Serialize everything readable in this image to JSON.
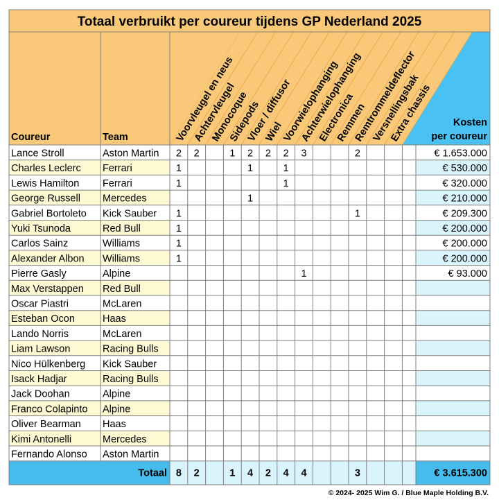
{
  "title": "Totaal verbruikt per coureur tijdens GP Nederland 2025",
  "headers": {
    "driver": "Coureur",
    "team": "Team",
    "cost_line1": "Kosten",
    "cost_line2": "per coureur"
  },
  "parts": [
    "Voorvleugel en neus",
    "Achtervleugel",
    "Monocoque",
    "Sidepods",
    "Vloer / diffusor",
    "Wiel",
    "Voorwielophanging",
    "Achterwielophanging",
    "Electronica",
    "Remmen",
    "Remtrommeldeflector",
    "Versnellingsbak",
    "Extra chassis"
  ],
  "rows": [
    {
      "driver": "Lance Stroll",
      "team": "Aston Martin",
      "counts": [
        "2",
        "2",
        "",
        "1",
        "2",
        "2",
        "2",
        "3",
        "",
        "",
        "2",
        "",
        ""
      ],
      "cost": "€ 1.653.000"
    },
    {
      "driver": "Charles Leclerc",
      "team": "Ferrari",
      "counts": [
        "1",
        "",
        "",
        "",
        "1",
        "",
        "1",
        "",
        "",
        "",
        "",
        "",
        ""
      ],
      "cost": "€ 530.000"
    },
    {
      "driver": "Lewis Hamilton",
      "team": "Ferrari",
      "counts": [
        "1",
        "",
        "",
        "",
        "",
        "",
        "1",
        "",
        "",
        "",
        "",
        "",
        ""
      ],
      "cost": "€ 320.000"
    },
    {
      "driver": "George Russell",
      "team": "Mercedes",
      "counts": [
        "",
        "",
        "",
        "",
        "1",
        "",
        "",
        "",
        "",
        "",
        "",
        "",
        ""
      ],
      "cost": "€ 210.000"
    },
    {
      "driver": "Gabriel Bortoleto",
      "team": "Kick Sauber",
      "counts": [
        "1",
        "",
        "",
        "",
        "",
        "",
        "",
        "",
        "",
        "",
        "1",
        "",
        ""
      ],
      "cost": "€ 209.300"
    },
    {
      "driver": "Yuki Tsunoda",
      "team": "Red Bull",
      "counts": [
        "1",
        "",
        "",
        "",
        "",
        "",
        "",
        "",
        "",
        "",
        "",
        "",
        ""
      ],
      "cost": "€ 200.000"
    },
    {
      "driver": "Carlos Sainz",
      "team": "Williams",
      "counts": [
        "1",
        "",
        "",
        "",
        "",
        "",
        "",
        "",
        "",
        "",
        "",
        "",
        ""
      ],
      "cost": "€ 200.000"
    },
    {
      "driver": "Alexander Albon",
      "team": "Williams",
      "counts": [
        "1",
        "",
        "",
        "",
        "",
        "",
        "",
        "",
        "",
        "",
        "",
        "",
        ""
      ],
      "cost": "€ 200.000"
    },
    {
      "driver": "Pierre Gasly",
      "team": "Alpine",
      "counts": [
        "",
        "",
        "",
        "",
        "",
        "",
        "",
        "1",
        "",
        "",
        "",
        "",
        ""
      ],
      "cost": "€ 93.000"
    },
    {
      "driver": "Max Verstappen",
      "team": "Red Bull",
      "counts": [
        "",
        "",
        "",
        "",
        "",
        "",
        "",
        "",
        "",
        "",
        "",
        "",
        ""
      ],
      "cost": ""
    },
    {
      "driver": "Oscar Piastri",
      "team": "McLaren",
      "counts": [
        "",
        "",
        "",
        "",
        "",
        "",
        "",
        "",
        "",
        "",
        "",
        "",
        ""
      ],
      "cost": ""
    },
    {
      "driver": "Esteban Ocon",
      "team": "Haas",
      "counts": [
        "",
        "",
        "",
        "",
        "",
        "",
        "",
        "",
        "",
        "",
        "",
        "",
        ""
      ],
      "cost": ""
    },
    {
      "driver": "Lando Norris",
      "team": "McLaren",
      "counts": [
        "",
        "",
        "",
        "",
        "",
        "",
        "",
        "",
        "",
        "",
        "",
        "",
        ""
      ],
      "cost": ""
    },
    {
      "driver": "Liam Lawson",
      "team": "Racing Bulls",
      "counts": [
        "",
        "",
        "",
        "",
        "",
        "",
        "",
        "",
        "",
        "",
        "",
        "",
        ""
      ],
      "cost": ""
    },
    {
      "driver": "Nico Hülkenberg",
      "team": "Kick Sauber",
      "counts": [
        "",
        "",
        "",
        "",
        "",
        "",
        "",
        "",
        "",
        "",
        "",
        "",
        ""
      ],
      "cost": ""
    },
    {
      "driver": "Isack Hadjar",
      "team": "Racing Bulls",
      "counts": [
        "",
        "",
        "",
        "",
        "",
        "",
        "",
        "",
        "",
        "",
        "",
        "",
        ""
      ],
      "cost": ""
    },
    {
      "driver": "Jack Doohan",
      "team": "Alpine",
      "counts": [
        "",
        "",
        "",
        "",
        "",
        "",
        "",
        "",
        "",
        "",
        "",
        "",
        ""
      ],
      "cost": ""
    },
    {
      "driver": "Franco Colapinto",
      "team": "Alpine",
      "counts": [
        "",
        "",
        "",
        "",
        "",
        "",
        "",
        "",
        "",
        "",
        "",
        "",
        ""
      ],
      "cost": ""
    },
    {
      "driver": "Oliver Bearman",
      "team": "Haas",
      "counts": [
        "",
        "",
        "",
        "",
        "",
        "",
        "",
        "",
        "",
        "",
        "",
        "",
        ""
      ],
      "cost": ""
    },
    {
      "driver": "Kimi Antonelli",
      "team": "Mercedes",
      "counts": [
        "",
        "",
        "",
        "",
        "",
        "",
        "",
        "",
        "",
        "",
        "",
        "",
        ""
      ],
      "cost": ""
    },
    {
      "driver": "Fernando Alonso",
      "team": "Aston Martin",
      "counts": [
        "",
        "",
        "",
        "",
        "",
        "",
        "",
        "",
        "",
        "",
        "",
        "",
        ""
      ],
      "cost": ""
    }
  ],
  "totals": {
    "label": "Totaal",
    "counts": [
      "8",
      "2",
      "",
      "1",
      "4",
      "2",
      "4",
      "4",
      "",
      "",
      "3",
      "",
      ""
    ],
    "cost": "€ 3.615.300"
  },
  "footer": "© 2024- 2025 Wim G. / Blue Maple Holding B.V.",
  "colors": {
    "header_orange": "#f9c979",
    "header_orange_dark": "#e8a94c",
    "cost_blue": "#49c1f3",
    "row_light_yellow": "#fdf9d3",
    "row_white": "#ffffff",
    "row_light_blue": "#d9f4fd",
    "total_bar_blue": "#45bcec",
    "grid": "#7f7f7f"
  }
}
